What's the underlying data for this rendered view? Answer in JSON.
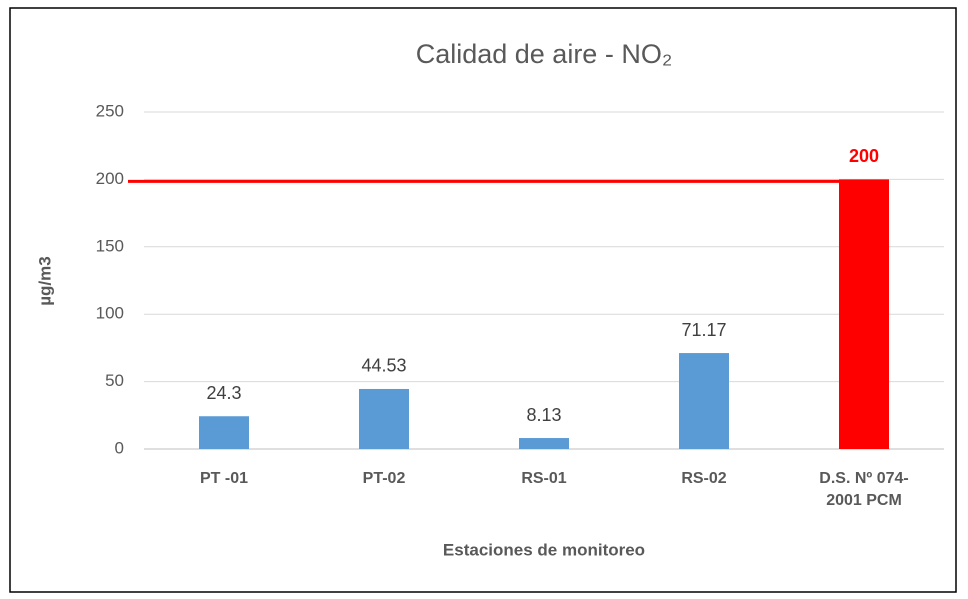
{
  "chart_data": {
    "type": "bar",
    "title": "Calidad de aire - NO₂",
    "x_label": "Estaciones de monitoreo",
    "y_label": "µg/m3",
    "categories": [
      "PT -01",
      "PT-02",
      "RS-01",
      "RS-02",
      "D.S. Nº 074-2001 PCM"
    ],
    "values": [
      24.3,
      44.53,
      8.13,
      71.17,
      200
    ],
    "colors": [
      "#5b9bd5",
      "#5b9bd5",
      "#5b9bd5",
      "#5b9bd5",
      "#ff0000"
    ],
    "value_label_colors": [
      "#404040",
      "#404040",
      "#404040",
      "#404040",
      "#ff0000"
    ],
    "value_label_weights": [
      "normal",
      "normal",
      "normal",
      "normal",
      "bold"
    ],
    "reference_line": {
      "value": 200,
      "color": "#ff0000"
    },
    "ylim": [
      0,
      250
    ],
    "yticks": [
      0,
      50,
      100,
      150,
      200,
      250
    ],
    "grid": true
  }
}
